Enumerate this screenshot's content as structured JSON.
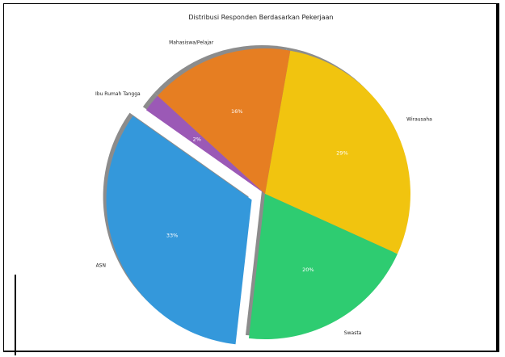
{
  "chart_data": {
    "type": "pie",
    "title": "Distribusi Responden Berdasarkan Pekerjaan",
    "slices": [
      {
        "label": "Wirausaha",
        "value": 29,
        "pct_label": "29%",
        "color": "#f1c40f",
        "explode": false
      },
      {
        "label": "Swasta",
        "value": 20,
        "pct_label": "20%",
        "color": "#2ecc71",
        "explode": false
      },
      {
        "label": "ASN",
        "value": 33,
        "pct_label": "33%",
        "color": "#3498db",
        "explode": true
      },
      {
        "label": "Ibu Rumah Tangga",
        "value": 2,
        "pct_label": "2%",
        "color": "#9b59b6",
        "explode": false
      },
      {
        "label": "Mahasiswa/Pelajar",
        "value": 16,
        "pct_label": "16%",
        "color": "#e67e22",
        "explode": false
      }
    ],
    "start_angle_deg": 80,
    "direction": "clockwise",
    "shadow": true
  }
}
